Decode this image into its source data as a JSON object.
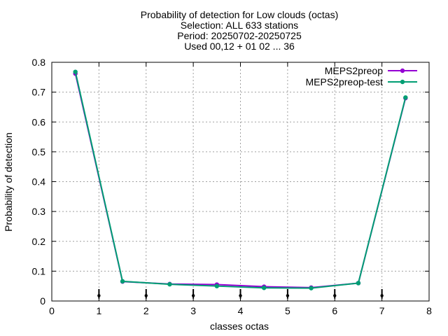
{
  "chart_data": {
    "type": "line",
    "title_lines": [
      "Probability of detection  for Low clouds (octas)",
      "Selection: ALL    633 stations",
      "Period: 20250702-20250725",
      "Used 00,12 + 01 02 ... 36"
    ],
    "xlabel": "classes octas",
    "ylabel": "Probability of detection",
    "xlim": [
      0,
      8
    ],
    "ylim": [
      0,
      0.8
    ],
    "xticks": [
      "0",
      "1",
      "2",
      "3",
      "4",
      "5",
      "6",
      "7",
      "8"
    ],
    "yticks": [
      "0",
      "0.1",
      "0.2",
      "0.3",
      "0.4",
      "0.5",
      "0.6",
      "0.7",
      "0.8"
    ],
    "grid": true,
    "legend_position": "top-right",
    "x": [
      0.5,
      1.5,
      2.5,
      3.5,
      4.5,
      5.5,
      6.5,
      7.5
    ],
    "series": [
      {
        "name": "MEPS2preop",
        "color": "#9400d3",
        "values": [
          0.762,
          0.065,
          0.057,
          0.055,
          0.048,
          0.045,
          0.06,
          0.68
        ]
      },
      {
        "name": "MEPS2preop-test",
        "color": "#009e73",
        "values": [
          0.768,
          0.066,
          0.056,
          0.05,
          0.044,
          0.043,
          0.06,
          0.682
        ]
      }
    ],
    "error_markers": {
      "x": [
        1,
        2,
        3,
        4,
        5,
        6,
        7
      ],
      "low": [
        0.008,
        0.008,
        0.008,
        0.008,
        0.008,
        0.008,
        0.008
      ],
      "high": [
        0.04,
        0.04,
        0.04,
        0.04,
        0.04,
        0.04,
        0.04
      ],
      "mid": [
        0.018,
        0.018,
        0.018,
        0.018,
        0.018,
        0.018,
        0.018
      ]
    }
  }
}
